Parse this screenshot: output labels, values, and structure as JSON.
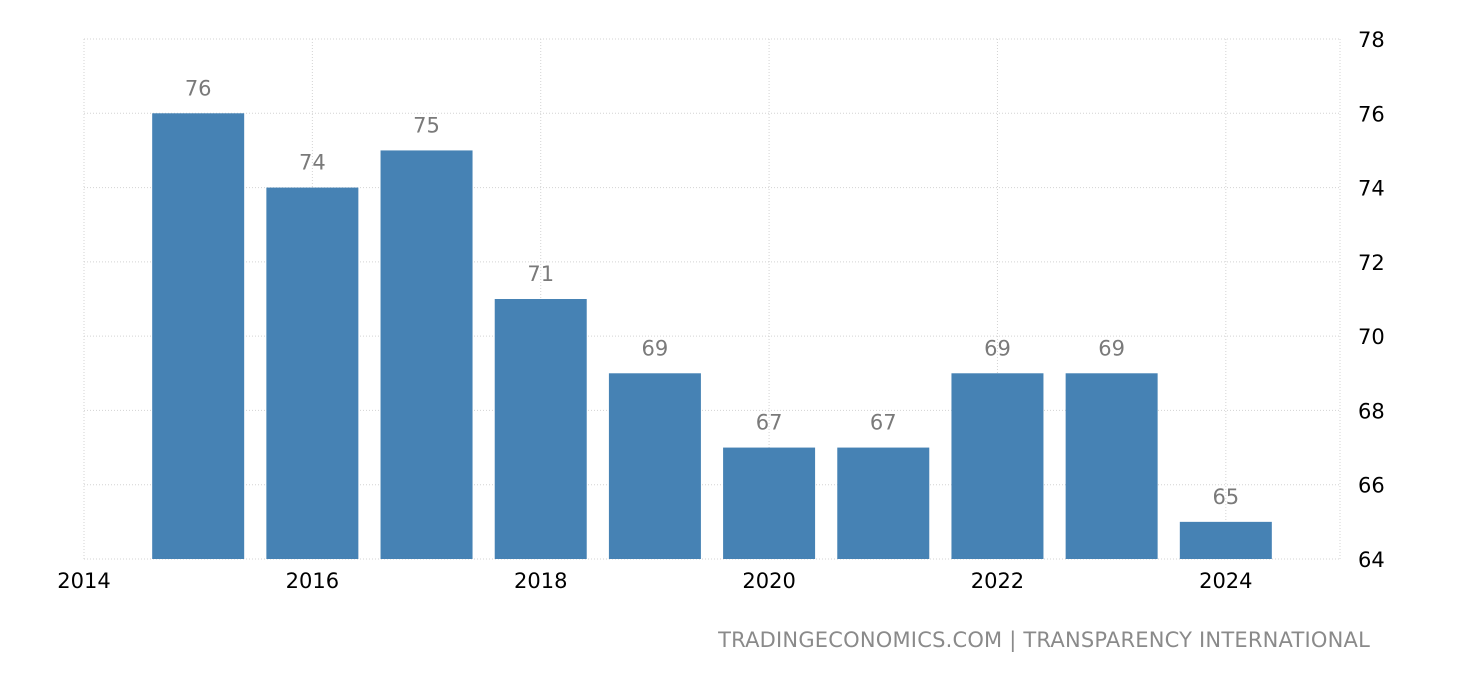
{
  "chart_data": {
    "type": "bar",
    "categories": [
      "2015",
      "2016",
      "2017",
      "2018",
      "2019",
      "2020",
      "2021",
      "2022",
      "2023",
      "2024"
    ],
    "values": [
      76,
      74,
      75,
      71,
      69,
      67,
      67,
      69,
      69,
      65
    ],
    "title": "",
    "xlabel": "",
    "ylabel": "",
    "ylim": [
      64,
      78
    ],
    "y_ticks": [
      "64",
      "66",
      "68",
      "70",
      "72",
      "74",
      "76",
      "78"
    ],
    "x_ticks": [
      "2014",
      "2016",
      "2018",
      "2020",
      "2022",
      "2024"
    ],
    "y_axis_side": "right",
    "grid": true,
    "data_labels": true,
    "colors": {
      "bar": "#4682b4",
      "data_label": "#7a7a7a",
      "grid": "#d3d3d3"
    }
  },
  "source": "TRADINGECONOMICS.COM | TRANSPARENCY INTERNATIONAL"
}
